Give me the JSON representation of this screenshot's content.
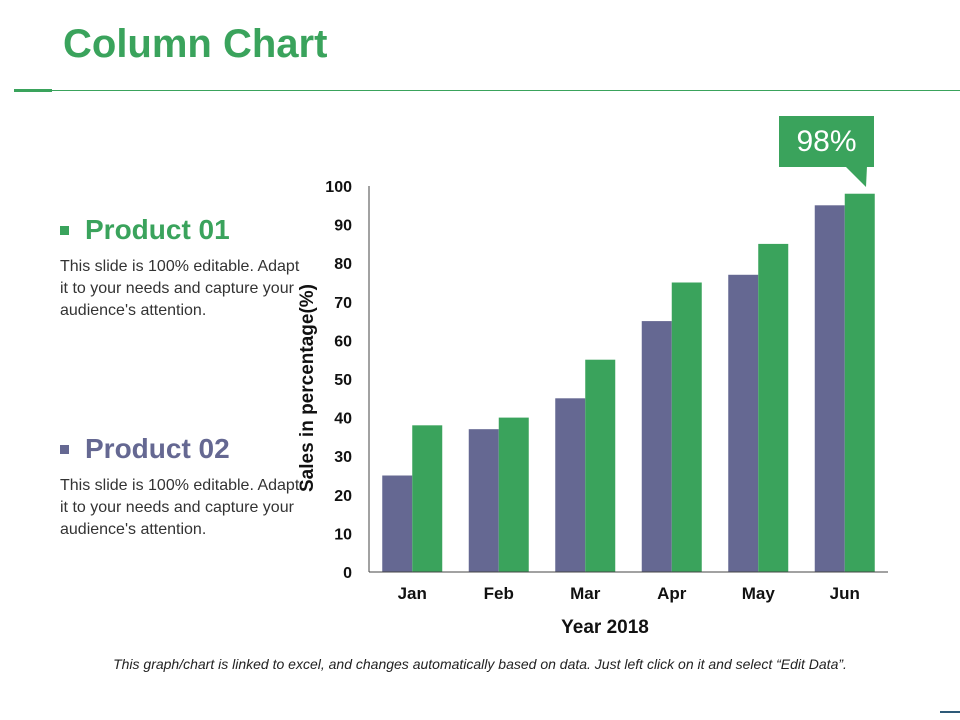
{
  "header": {
    "title": "Column Chart"
  },
  "legend": [
    {
      "label": "Product 01",
      "color": "#3aa35c",
      "description": "This slide is 100% editable. Adapt it to your needs and capture your audience's attention."
    },
    {
      "label": "Product 02",
      "color": "#656892",
      "description": "This slide is 100% editable. Adapt it to your needs and capture your audience's attention."
    }
  ],
  "callout": {
    "text": "98%"
  },
  "footnote": "This graph/chart is linked to excel, and changes automatically based on data. Just left click on it and select “Edit Data”.",
  "chart_data": {
    "type": "bar",
    "categories": [
      "Jan",
      "Feb",
      "Mar",
      "Apr",
      "May",
      "Jun"
    ],
    "series": [
      {
        "name": "Product 02",
        "color": "#656892",
        "values": [
          25,
          37,
          45,
          65,
          77,
          95
        ]
      },
      {
        "name": "Product 01",
        "color": "#3aa35c",
        "values": [
          38,
          40,
          55,
          75,
          85,
          98
        ]
      }
    ],
    "xlabel": "Year 2018",
    "ylabel": "Sales in percentage(%)",
    "ylim": [
      0,
      100
    ],
    "yticks": [
      0,
      10,
      20,
      30,
      40,
      50,
      60,
      70,
      80,
      90,
      100
    ],
    "grid": false
  }
}
